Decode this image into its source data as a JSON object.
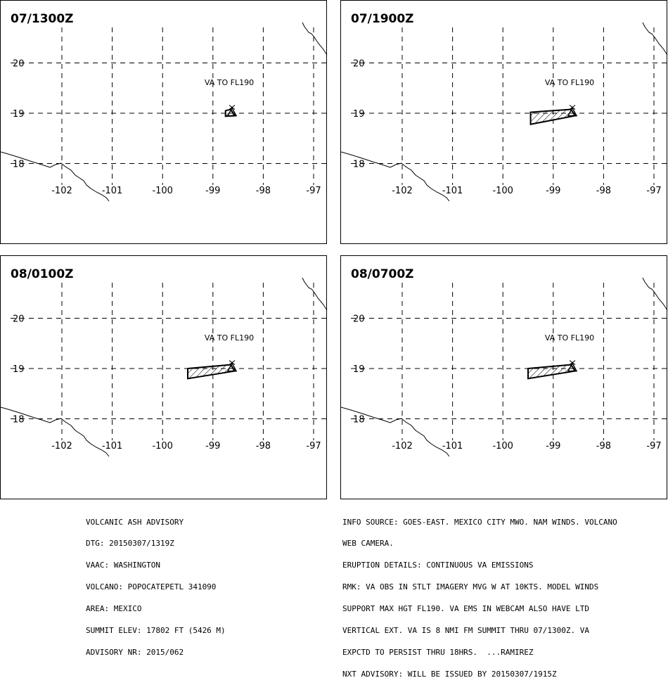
{
  "panels": [
    {
      "time": "07/1300Z",
      "label": "VA TO FL190",
      "ash_west_lon": -98.75,
      "ash_west_south_lat": 18.94,
      "ash_west_north_lat": 19.05
    },
    {
      "time": "07/1900Z",
      "label": "VA TO FL190",
      "ash_west_lon": -99.45,
      "ash_west_south_lat": 18.78,
      "ash_west_north_lat": 19.02
    },
    {
      "time": "08/0100Z",
      "label": "VA TO FL190",
      "ash_west_lon": -99.5,
      "ash_west_south_lat": 18.8,
      "ash_west_north_lat": 19.0
    },
    {
      "time": "08/0700Z",
      "label": "VA TO FL190",
      "ash_west_lon": -99.5,
      "ash_west_south_lat": 18.8,
      "ash_west_north_lat": 19.0
    }
  ],
  "axes": {
    "lon_ticks": [
      "-102",
      "-101",
      "-100",
      "-99",
      "-98",
      "-97"
    ],
    "lat_ticks": [
      "20",
      "19",
      "18"
    ]
  },
  "volcano": {
    "lon": -98.62,
    "lat": 19.02,
    "symbol": "volcano-triangle-icon"
  },
  "advisory_left": [
    "VOLCANIC ASH ADVISORY",
    "DTG: 20150307/1319Z",
    "VAAC: WASHINGTON",
    "VOLCANO: POPOCATEPETL 341090",
    "AREA: MEXICO",
    "SUMMIT ELEV: 17802 FT (5426 M)",
    "ADVISORY NR: 2015/062"
  ],
  "advisory_right": [
    "INFO SOURCE: GOES-EAST. MEXICO CITY MWO. NAM WINDS. VOLCANO",
    "WEB CAMERA.",
    "ERUPTION DETAILS: CONTINUOUS VA EMISSIONS",
    "RMK: VA OBS IN STLT IMAGERY MVG W AT 10KTS. MODEL WINDS",
    "SUPPORT MAX HGT FL190. VA EMS IN WEBCAM ALSO HAVE LTD",
    "VERTICAL EXT. VA IS 8 NMI FM SUMMIT THRU 07/1300Z. VA",
    "EXPCTD TO PERSIST THRU 18HRS.  ...RAMIREZ",
    "NXT ADVISORY: WILL BE ISSUED BY 20150307/1915Z"
  ]
}
